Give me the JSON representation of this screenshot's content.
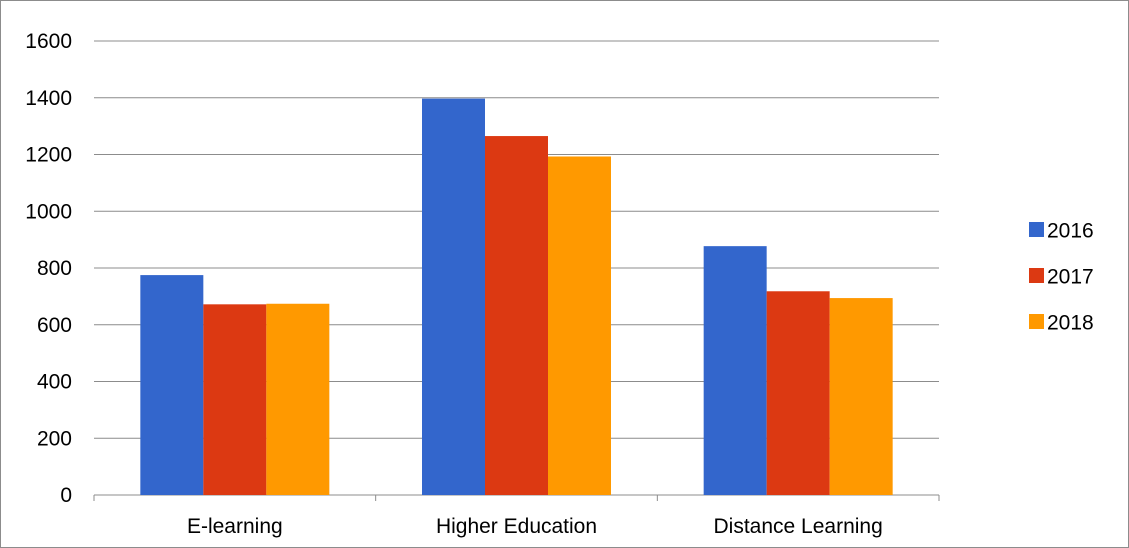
{
  "chart_data": {
    "type": "bar",
    "categories": [
      "E-learning",
      "Higher Education",
      "Distance Learning"
    ],
    "series": [
      {
        "name": "2016",
        "color": "#3366cc",
        "values": [
          775,
          1397,
          877
        ]
      },
      {
        "name": "2017",
        "color": "#dc3912",
        "values": [
          672,
          1265,
          718
        ]
      },
      {
        "name": "2018",
        "color": "#ff9900",
        "values": [
          674,
          1193,
          694
        ]
      }
    ],
    "ylim": [
      0,
      1600
    ],
    "yticks": [
      "0",
      "200",
      "400",
      "600",
      "800",
      "1000",
      "1200",
      "1400",
      "1600"
    ],
    "grid": true,
    "legend_position": "right",
    "title": "",
    "xlabel": "",
    "ylabel": ""
  }
}
